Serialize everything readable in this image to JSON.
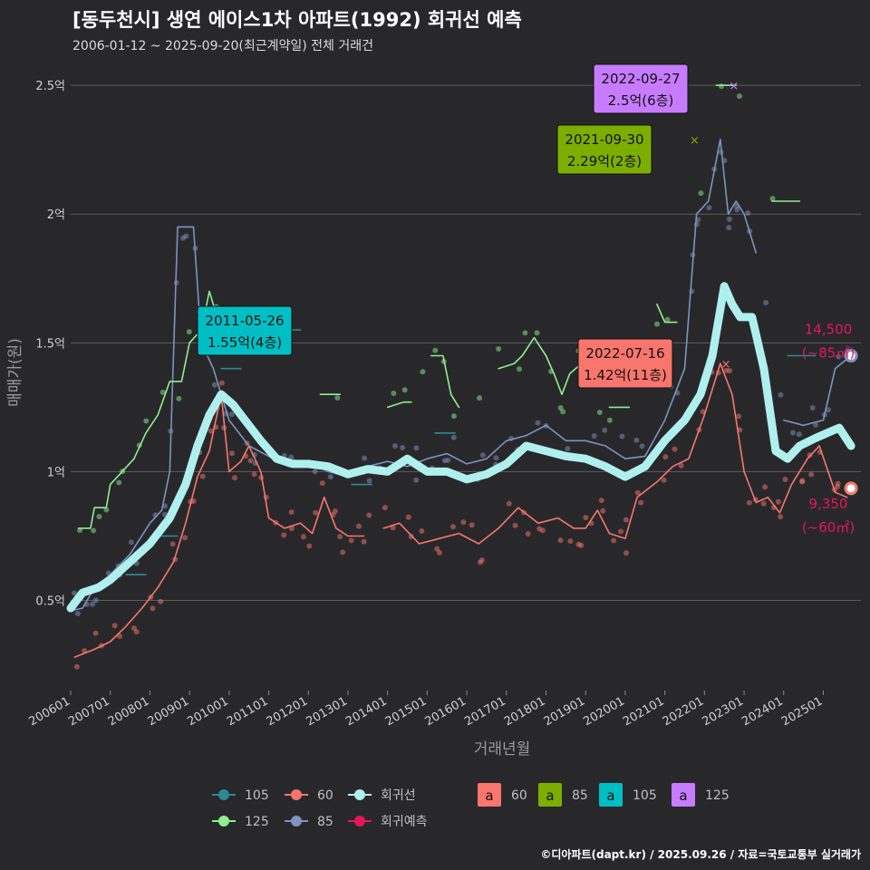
{
  "title": "[동두천시] 생연 에이스1차 아파트(1992) 회귀선 예측",
  "subtitle": "2006-01-12 ~ 2025-09-20(최근계약일) 전체 거래건",
  "caption": "©디아파트(dapt.kr) / 2025.09.26 / 자료=국토교통부 실거래가",
  "colors": {
    "s60": "#f8766d",
    "s85": "#7f93bf",
    "s105": "#2a8a96",
    "s125": "#90ee90",
    "regression": "#aff0ef",
    "prediction": "#e8155a",
    "box60": "#f8766d",
    "box85": "#7cae00",
    "box105": "#00bfc4",
    "box125": "#c77cff"
  },
  "chart_data": {
    "type": "line",
    "xlabel": "거래년월",
    "ylabel": "매매가(원)",
    "x_range": [
      "2006-01",
      "2025-12"
    ],
    "ylim": [
      0.15,
      2.62
    ],
    "y_ticks": [
      {
        "v": 0.5,
        "label": "0.5억"
      },
      {
        "v": 1.0,
        "label": "1억"
      },
      {
        "v": 1.5,
        "label": "1.5억"
      },
      {
        "v": 2.0,
        "label": "2억"
      },
      {
        "v": 2.5,
        "label": "2.5억"
      }
    ],
    "x_ticks": [
      "200601",
      "200701",
      "200801",
      "200901",
      "201001",
      "201101",
      "201201",
      "201301",
      "201401",
      "201501",
      "201601",
      "201701",
      "201801",
      "201901",
      "202001",
      "202101",
      "202201",
      "202301",
      "202401",
      "202501"
    ],
    "series": [
      {
        "name": "60",
        "color": "#f8766d",
        "unit": "억",
        "points": [
          [
            2006.1,
            0.28
          ],
          [
            2006.6,
            0.31
          ],
          [
            2007.0,
            0.34
          ],
          [
            2007.4,
            0.4
          ],
          [
            2007.8,
            0.47
          ],
          [
            2008.2,
            0.55
          ],
          [
            2008.6,
            0.65
          ],
          [
            2008.9,
            0.8
          ],
          [
            2009.2,
            0.98
          ],
          [
            2009.5,
            1.08
          ],
          [
            2009.8,
            1.3
          ],
          [
            2010.0,
            1.0
          ],
          [
            2010.3,
            1.04
          ],
          [
            2010.5,
            1.1
          ],
          [
            2010.8,
            1.0
          ],
          [
            2011.0,
            0.82
          ],
          [
            2011.4,
            0.78
          ],
          [
            2011.8,
            0.8
          ],
          [
            2012.1,
            0.76
          ],
          [
            2012.4,
            0.9
          ],
          [
            2012.7,
            0.78
          ],
          [
            2013.0,
            0.75
          ],
          [
            2013.4,
            0.75
          ],
          [
            2013.6,
            null
          ],
          [
            2013.9,
            0.78
          ],
          [
            2014.3,
            0.8
          ],
          [
            2014.8,
            0.72
          ],
          [
            2015.3,
            0.74
          ],
          [
            2015.8,
            0.76
          ],
          [
            2016.3,
            0.72
          ],
          [
            2016.8,
            0.78
          ],
          [
            2017.3,
            0.86
          ],
          [
            2017.8,
            0.8
          ],
          [
            2018.3,
            0.82
          ],
          [
            2018.7,
            0.78
          ],
          [
            2019.0,
            0.78
          ],
          [
            2019.3,
            0.85
          ],
          [
            2019.6,
            0.76
          ],
          [
            2020.0,
            0.74
          ],
          [
            2020.3,
            0.9
          ],
          [
            2020.8,
            0.96
          ],
          [
            2021.2,
            1.02
          ],
          [
            2021.6,
            1.05
          ],
          [
            2022.0,
            1.22
          ],
          [
            2022.4,
            1.42
          ],
          [
            2022.7,
            1.3
          ],
          [
            2023.0,
            1.0
          ],
          [
            2023.3,
            0.88
          ],
          [
            2023.6,
            0.9
          ],
          [
            2023.9,
            0.84
          ],
          [
            2024.2,
            0.95
          ],
          [
            2024.6,
            1.05
          ],
          [
            2024.9,
            1.1
          ],
          [
            2025.3,
            0.92
          ],
          [
            2025.6,
            0.9
          ]
        ]
      },
      {
        "name": "85",
        "color": "#7f93bf",
        "unit": "억",
        "points": [
          [
            2006.0,
            0.46
          ],
          [
            2006.3,
            0.47
          ],
          [
            2006.6,
            0.55
          ],
          [
            2007.0,
            0.6
          ],
          [
            2007.5,
            0.68
          ],
          [
            2008.0,
            0.8
          ],
          [
            2008.3,
            0.85
          ],
          [
            2008.5,
            1.0
          ],
          [
            2008.7,
            1.95
          ],
          [
            2009.1,
            1.95
          ],
          [
            2009.3,
            1.5
          ],
          [
            2009.6,
            1.4
          ],
          [
            2010.0,
            1.2
          ],
          [
            2010.5,
            1.1
          ],
          [
            2011.0,
            1.06
          ],
          [
            2011.5,
            1.02
          ],
          [
            2012.0,
            1.04
          ],
          [
            2012.5,
            1.0
          ],
          [
            2013.0,
            0.98
          ],
          [
            2013.5,
            1.02
          ],
          [
            2014.0,
            1.04
          ],
          [
            2014.5,
            1.02
          ],
          [
            2015.0,
            1.05
          ],
          [
            2015.5,
            1.07
          ],
          [
            2016.0,
            1.03
          ],
          [
            2016.5,
            1.05
          ],
          [
            2017.0,
            1.12
          ],
          [
            2017.5,
            1.14
          ],
          [
            2018.0,
            1.18
          ],
          [
            2018.5,
            1.12
          ],
          [
            2019.0,
            1.12
          ],
          [
            2019.5,
            1.1
          ],
          [
            2020.0,
            1.05
          ],
          [
            2020.5,
            1.06
          ],
          [
            2021.0,
            1.2
          ],
          [
            2021.5,
            1.4
          ],
          [
            2021.8,
            2.0
          ],
          [
            2022.1,
            2.05
          ],
          [
            2022.4,
            2.29
          ],
          [
            2022.6,
            2.0
          ],
          [
            2022.8,
            2.05
          ],
          [
            2023.0,
            2.0
          ],
          [
            2023.3,
            1.85
          ],
          [
            2023.6,
            null
          ],
          [
            2024.0,
            1.2
          ],
          [
            2024.5,
            1.18
          ],
          [
            2025.0,
            1.2
          ],
          [
            2025.3,
            1.4
          ],
          [
            2025.7,
            1.45
          ]
        ]
      },
      {
        "name": "105",
        "color": "#2a8a96",
        "unit": "억",
        "points": [
          [
            2007.4,
            0.6
          ],
          [
            2007.9,
            0.6
          ],
          [
            2008.0,
            null
          ],
          [
            2008.2,
            0.75
          ],
          [
            2008.7,
            0.75
          ],
          [
            2008.8,
            null
          ],
          [
            2009.8,
            1.4
          ],
          [
            2010.3,
            1.4
          ],
          [
            2010.4,
            null
          ],
          [
            2011.3,
            1.55
          ],
          [
            2011.8,
            1.55
          ],
          [
            2011.9,
            null
          ],
          [
            2013.1,
            0.95
          ],
          [
            2013.6,
            0.95
          ],
          [
            2013.7,
            null
          ],
          [
            2015.2,
            1.15
          ],
          [
            2015.7,
            1.15
          ],
          [
            2015.8,
            null
          ],
          [
            2024.1,
            1.45
          ],
          [
            2024.8,
            1.45
          ]
        ]
      },
      {
        "name": "125",
        "color": "#90ee90",
        "unit": "억",
        "points": [
          [
            2006.2,
            0.78
          ],
          [
            2006.5,
            0.78
          ],
          [
            2006.6,
            0.86
          ],
          [
            2006.9,
            0.86
          ],
          [
            2007.0,
            0.95
          ],
          [
            2007.3,
            1.0
          ],
          [
            2007.6,
            1.05
          ],
          [
            2007.9,
            1.15
          ],
          [
            2008.2,
            1.22
          ],
          [
            2008.5,
            1.35
          ],
          [
            2008.8,
            1.35
          ],
          [
            2009.0,
            1.5
          ],
          [
            2009.3,
            1.55
          ],
          [
            2009.5,
            1.7
          ],
          [
            2009.7,
            1.6
          ],
          [
            2009.8,
            null
          ],
          [
            2012.3,
            1.3
          ],
          [
            2012.8,
            1.3
          ],
          [
            2012.9,
            null
          ],
          [
            2014.0,
            1.25
          ],
          [
            2014.4,
            1.27
          ],
          [
            2014.6,
            1.27
          ],
          [
            2014.7,
            null
          ],
          [
            2015.1,
            1.45
          ],
          [
            2015.4,
            1.45
          ],
          [
            2015.6,
            1.3
          ],
          [
            2015.8,
            1.25
          ],
          [
            2016.0,
            null
          ],
          [
            2016.8,
            1.4
          ],
          [
            2017.2,
            1.42
          ],
          [
            2017.4,
            1.45
          ],
          [
            2017.7,
            1.52
          ],
          [
            2018.0,
            1.45
          ],
          [
            2018.2,
            1.38
          ],
          [
            2018.4,
            1.3
          ],
          [
            2018.6,
            1.38
          ],
          [
            2018.9,
            1.42
          ],
          [
            2019.0,
            null
          ],
          [
            2019.6,
            1.25
          ],
          [
            2020.1,
            1.25
          ],
          [
            2020.2,
            null
          ],
          [
            2020.8,
            1.65
          ],
          [
            2021.0,
            1.58
          ],
          [
            2021.3,
            1.58
          ],
          [
            2021.5,
            null
          ],
          [
            2022.3,
            2.5
          ],
          [
            2022.8,
            2.5
          ],
          [
            2022.9,
            null
          ],
          [
            2023.7,
            2.05
          ],
          [
            2024.4,
            2.05
          ]
        ]
      },
      {
        "name": "회귀선",
        "color": "#aff0ef",
        "unit": "억",
        "points": [
          [
            2006.0,
            0.47
          ],
          [
            2006.3,
            0.53
          ],
          [
            2006.7,
            0.55
          ],
          [
            2007.0,
            0.58
          ],
          [
            2007.5,
            0.65
          ],
          [
            2008.0,
            0.72
          ],
          [
            2008.5,
            0.82
          ],
          [
            2008.9,
            0.95
          ],
          [
            2009.2,
            1.1
          ],
          [
            2009.5,
            1.22
          ],
          [
            2009.8,
            1.3
          ],
          [
            2010.1,
            1.26
          ],
          [
            2010.4,
            1.2
          ],
          [
            2010.8,
            1.12
          ],
          [
            2011.2,
            1.05
          ],
          [
            2011.6,
            1.03
          ],
          [
            2012.0,
            1.03
          ],
          [
            2012.5,
            1.02
          ],
          [
            2013.0,
            0.99
          ],
          [
            2013.5,
            1.01
          ],
          [
            2014.0,
            1.0
          ],
          [
            2014.5,
            1.05
          ],
          [
            2015.0,
            1.0
          ],
          [
            2015.5,
            1.0
          ],
          [
            2016.0,
            0.97
          ],
          [
            2016.5,
            0.99
          ],
          [
            2017.0,
            1.03
          ],
          [
            2017.5,
            1.1
          ],
          [
            2018.0,
            1.08
          ],
          [
            2018.5,
            1.06
          ],
          [
            2019.0,
            1.05
          ],
          [
            2019.5,
            1.02
          ],
          [
            2020.0,
            0.98
          ],
          [
            2020.5,
            1.02
          ],
          [
            2021.0,
            1.12
          ],
          [
            2021.5,
            1.2
          ],
          [
            2021.9,
            1.3
          ],
          [
            2022.2,
            1.45
          ],
          [
            2022.5,
            1.72
          ],
          [
            2022.7,
            1.65
          ],
          [
            2022.9,
            1.6
          ],
          [
            2023.2,
            1.6
          ],
          [
            2023.5,
            1.4
          ],
          [
            2023.8,
            1.08
          ],
          [
            2024.1,
            1.05
          ],
          [
            2024.4,
            1.1
          ],
          [
            2024.8,
            1.13
          ],
          [
            2025.1,
            1.15
          ],
          [
            2025.4,
            1.17
          ],
          [
            2025.7,
            1.1
          ]
        ]
      }
    ],
    "prediction": [
      {
        "series": "85",
        "x": 2025.7,
        "y": 1.45,
        "label": "14,500",
        "area": "(~85㎡)"
      },
      {
        "series": "60",
        "x": 2025.7,
        "y": 0.935,
        "label": "9,350",
        "area": "(~60㎡)"
      }
    ],
    "annotations": [
      {
        "series": "105",
        "date": "2011-05-26",
        "value": "1.55억(4층)",
        "x": 2011.4,
        "y": 1.55
      },
      {
        "series": "85",
        "date": "2021-09-30",
        "value": "2.29억(2층)",
        "x": 2021.75,
        "y": 2.29
      },
      {
        "series": "125",
        "date": "2022-09-27",
        "value": "2.5억(6층)",
        "x": 2022.74,
        "y": 2.5
      },
      {
        "series": "60",
        "date": "2022-07-16",
        "value": "1.42억(11층)",
        "x": 2022.54,
        "y": 1.42
      }
    ],
    "scatter_note": "개별 거래건 점",
    "legend": {
      "line_items": [
        {
          "label": "105",
          "color": "#2a8a96"
        },
        {
          "label": "60",
          "color": "#f8766d"
        },
        {
          "label": "회귀선",
          "color": "#aff0ef"
        },
        {
          "label": "125",
          "color": "#90ee90"
        },
        {
          "label": "85",
          "color": "#7f93bf"
        },
        {
          "label": "회귀예측",
          "color": "#e8155a"
        }
      ],
      "box_items": [
        {
          "label": "60",
          "color": "#f8766d"
        },
        {
          "label": "85",
          "color": "#7cae00"
        },
        {
          "label": "105",
          "color": "#00bfc4"
        },
        {
          "label": "125",
          "color": "#c77cff"
        }
      ],
      "box_glyph": "a"
    }
  }
}
